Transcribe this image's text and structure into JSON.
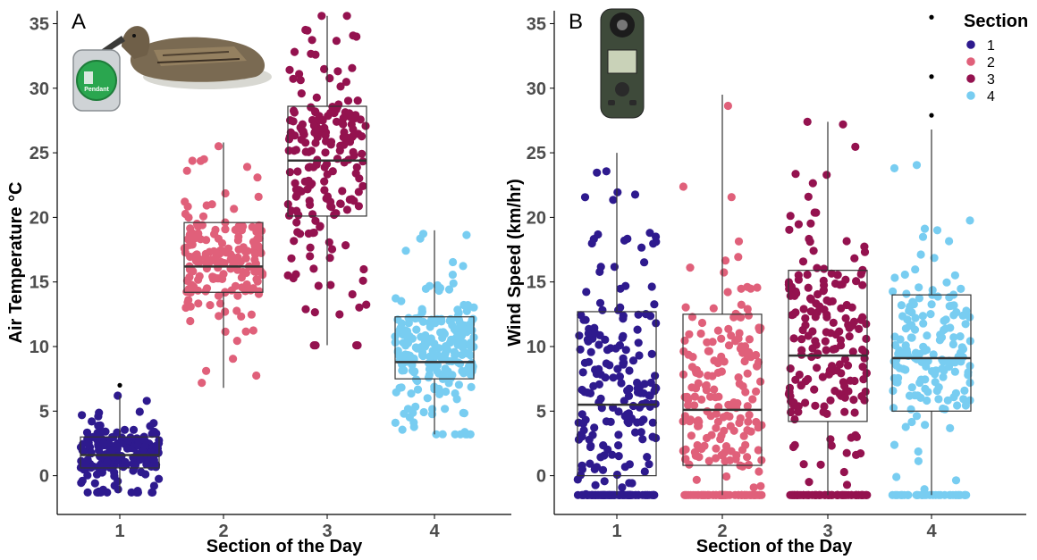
{
  "colors": {
    "section_1": "#2e1a8e",
    "section_2": "#e0607a",
    "section_3": "#94124f",
    "section_4": "#78cdf1",
    "outlier": "#000000"
  },
  "legend": {
    "title": "Section",
    "items": [
      "1",
      "2",
      "3",
      "4"
    ],
    "placement": "top-right"
  },
  "icons": {
    "panel_a": "duck-with-pendant-logger-icon",
    "panel_b": "kestrel-anemometer-icon"
  },
  "chart_data": [
    {
      "type": "box",
      "panel_label": "A",
      "xlabel": "Section of the Day",
      "ylabel": "Air Temperature °C",
      "categories": [
        "1",
        "2",
        "3",
        "4"
      ],
      "ylim": [
        -3,
        36
      ],
      "yticks": [
        0,
        5,
        10,
        15,
        20,
        25,
        30,
        35
      ],
      "grid": false,
      "jitter_points": true,
      "boxes": [
        {
          "section": "1",
          "min": -1.3,
          "q1": 0.6,
          "median": 1.6,
          "q3": 3.0,
          "max": 6.2,
          "outliers": [
            7.0
          ],
          "n_points": 200
        },
        {
          "section": "2",
          "min": 6.8,
          "q1": 14.2,
          "median": 16.2,
          "q3": 19.6,
          "max": 25.8,
          "outliers": [],
          "n_points": 190
        },
        {
          "section": "3",
          "min": 10.1,
          "q1": 20.1,
          "median": 24.4,
          "q3": 28.6,
          "max": 35.6,
          "outliers": [],
          "n_points": 200
        },
        {
          "section": "4",
          "min": 3.2,
          "q1": 7.5,
          "median": 8.8,
          "q3": 12.3,
          "max": 19.0,
          "outliers": [],
          "n_points": 230
        }
      ]
    },
    {
      "type": "box",
      "panel_label": "B",
      "xlabel": "Section of the Day",
      "ylabel": "Wind Speed (km/hr)",
      "categories": [
        "1",
        "2",
        "3",
        "4"
      ],
      "ylim": [
        -3,
        36
      ],
      "yticks": [
        0,
        5,
        10,
        15,
        20,
        25,
        30,
        35
      ],
      "grid": false,
      "jitter_points": true,
      "boxes": [
        {
          "section": "1",
          "min": -1.5,
          "q1": 0.0,
          "median": 5.5,
          "q3": 12.7,
          "max": 25.0,
          "outliers": [],
          "n_points": 260
        },
        {
          "section": "2",
          "min": -1.5,
          "q1": 0.8,
          "median": 5.1,
          "q3": 12.5,
          "max": 29.5,
          "outliers": [],
          "n_points": 240
        },
        {
          "section": "3",
          "min": -1.5,
          "q1": 4.2,
          "median": 9.3,
          "q3": 15.9,
          "max": 27.4,
          "outliers": [],
          "n_points": 250
        },
        {
          "section": "4",
          "min": -1.5,
          "q1": 5.0,
          "median": 9.1,
          "q3": 14.0,
          "max": 26.8,
          "outliers": [
            27.9,
            30.9,
            35.5
          ],
          "n_points": 200
        }
      ]
    }
  ]
}
